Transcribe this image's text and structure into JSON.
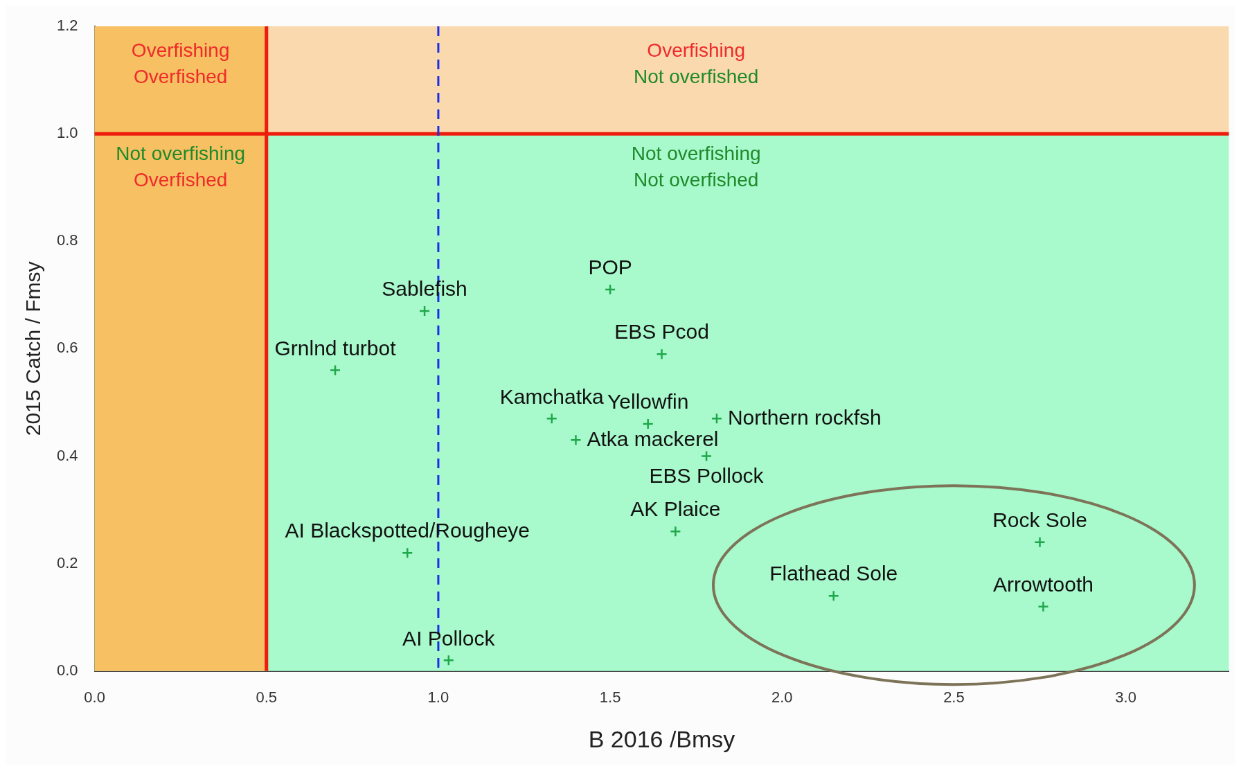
{
  "chart_data": {
    "type": "scatter",
    "xlabel": "B 2016 /Bmsy",
    "ylabel": "2015 Catch / Fmsy",
    "xlim": [
      0,
      3.3
    ],
    "xticks": [
      {
        "value": 0,
        "label": "0.0"
      },
      {
        "value": 0.5,
        "label": "0.5"
      },
      {
        "value": 1,
        "label": "1.0"
      },
      {
        "value": 1.5,
        "label": "1.5"
      },
      {
        "value": 2,
        "label": "2.0"
      },
      {
        "value": 2.5,
        "label": "2.5"
      },
      {
        "value": 3,
        "label": "3.0"
      }
    ],
    "ylim": [
      0,
      1.2
    ],
    "yticks": [
      {
        "value": 0,
        "label": "0.0"
      },
      {
        "value": 0.2,
        "label": "0.2"
      },
      {
        "value": 0.4,
        "label": "0.4"
      },
      {
        "value": 0.6,
        "label": "0.6"
      },
      {
        "value": 0.8,
        "label": "0.8"
      },
      {
        "value": 1,
        "label": "1.0"
      },
      {
        "value": 1.2,
        "label": "1.2"
      }
    ],
    "grid": false,
    "legend": false,
    "marker": "cross",
    "series": [
      {
        "color": "#1fa84a",
        "x": [
          1.5,
          0.96,
          1.65,
          0.7,
          1.33,
          1.61,
          1.81,
          1.4,
          1.78,
          1.69,
          0.91,
          1.03,
          2.75,
          2.15,
          2.76
        ],
        "values": [
          0.71,
          0.67,
          0.59,
          0.56,
          0.47,
          0.46,
          0.47,
          0.43,
          0.4,
          0.26,
          0.22,
          0.02,
          0.24,
          0.14,
          0.12
        ]
      }
    ],
    "bands": [
      {
        "axis": "y",
        "from": 0,
        "to": 1,
        "color": "#a8f9cc"
      },
      {
        "axis": "y",
        "from": 1,
        "to": 1.2,
        "color": "#fad9ae"
      },
      {
        "axis": "x",
        "from": 0,
        "to": 0.5,
        "color": "#f7c063"
      }
    ],
    "ref_lines": [
      {
        "axis": "x",
        "value": 0.5,
        "color": "#ee1c0c",
        "line_style": "solid"
      },
      {
        "axis": "y",
        "value": 1,
        "color": "#ee1c0c",
        "line_style": "solid"
      },
      {
        "axis": "x",
        "value": 1,
        "color": "#1b2ee8",
        "line_style": "dashed"
      }
    ],
    "annotations": [
      {
        "text": "POP",
        "x": 1.5,
        "y": 0.71
      },
      {
        "text": "Sablefish",
        "x": 0.96,
        "y": 0.67
      },
      {
        "text": "EBS Pcod",
        "x": 1.65,
        "y": 0.59
      },
      {
        "text": "Grnlnd turbot",
        "x": 0.7,
        "y": 0.56
      },
      {
        "text": "Kamchatka",
        "x": 1.33,
        "y": 0.47
      },
      {
        "text": "Yellowfin",
        "x": 1.61,
        "y": 0.46
      },
      {
        "text": "Northern rockfsh",
        "x": 1.81,
        "y": 0.47
      },
      {
        "text": "Atka mackerel",
        "x": 1.4,
        "y": 0.43
      },
      {
        "text": "EBS Pollock",
        "x": 1.78,
        "y": 0.4
      },
      {
        "text": "AK Plaice",
        "x": 1.69,
        "y": 0.26
      },
      {
        "text": "AI Blackspotted/Rougheye",
        "x": 0.91,
        "y": 0.22
      },
      {
        "text": "AI Pollock",
        "x": 1.03,
        "y": 0.02
      },
      {
        "text": "Rock Sole",
        "x": 2.75,
        "y": 0.24
      },
      {
        "text": "Flathead Sole",
        "x": 2.15,
        "y": 0.14
      },
      {
        "text": "Arrowtooth",
        "x": 2.76,
        "y": 0.12
      },
      "Overfishing\nOverfished",
      "Overfishing\nNot overfished",
      "Not overfishing\nOverfished",
      "Not overfishing\nNot overfished"
    ]
  }
}
